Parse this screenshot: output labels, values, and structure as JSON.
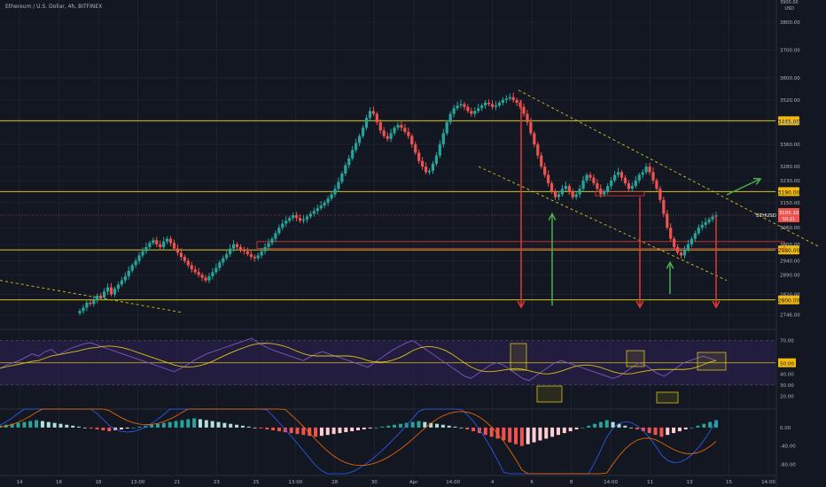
{
  "header": {
    "title": "Ethereum / U.S. Dollar, 4h, BITFINEX"
  },
  "chart_data": {
    "type": "candlestick",
    "symbol": "ETHUSD",
    "price_scale": {
      "unit_label": "USD",
      "ticks": [
        3800,
        3700,
        3600,
        3520,
        3440,
        3360,
        3280,
        3230,
        3150,
        3060,
        3000,
        2940,
        2890,
        2820,
        2746
      ],
      "top_label": "3900.00",
      "ylim": [
        2700,
        3880
      ]
    },
    "time_axis": {
      "labels": [
        "14",
        "16",
        "18",
        "13:00",
        "21",
        "23",
        "25",
        "13:00",
        "28",
        "30",
        "Apr",
        "14:00",
        "4",
        "6",
        "8",
        "14:00",
        "11",
        "13",
        "15",
        "14:00"
      ]
    },
    "horizontal_levels": [
      {
        "label": "3445.00",
        "value": 3445
      },
      {
        "label": "3190.00",
        "value": 3190
      },
      {
        "label": "2980.00",
        "value": 2980
      },
      {
        "label": "2800.00",
        "value": 2800
      }
    ],
    "current_price": {
      "symbol": "ETHUSD",
      "value": "3105.10",
      "countdown": "50:21",
      "price": 3105
    },
    "candles_close": [
      2760,
      2772,
      2790,
      2785,
      2800,
      2815,
      2808,
      2830,
      2845,
      2820,
      2840,
      2855,
      2870,
      2885,
      2905,
      2925,
      2940,
      2960,
      2975,
      2990,
      3005,
      3015,
      3000,
      2990,
      3010,
      3020,
      3005,
      2985,
      2970,
      2955,
      2940,
      2925,
      2910,
      2900,
      2890,
      2880,
      2870,
      2885,
      2900,
      2915,
      2935,
      2950,
      2965,
      2985,
      3000,
      2990,
      2980,
      2975,
      2965,
      2955,
      2950,
      2960,
      2975,
      2990,
      3005,
      3020,
      3040,
      3060,
      3075,
      3085,
      3095,
      3105,
      3095,
      3085,
      3090,
      3100,
      3110,
      3120,
      3130,
      3140,
      3150,
      3165,
      3180,
      3200,
      3225,
      3255,
      3285,
      3310,
      3340,
      3365,
      3390,
      3420,
      3455,
      3480,
      3470,
      3440,
      3410,
      3390,
      3380,
      3400,
      3420,
      3430,
      3420,
      3405,
      3390,
      3360,
      3330,
      3300,
      3280,
      3260,
      3265,
      3290,
      3320,
      3360,
      3400,
      3440,
      3470,
      3490,
      3500,
      3505,
      3495,
      3480,
      3470,
      3480,
      3490,
      3500,
      3510,
      3505,
      3495,
      3500,
      3510,
      3520,
      3525,
      3530,
      3520,
      3510,
      3495,
      3470,
      3440,
      3400,
      3360,
      3320,
      3280,
      3250,
      3220,
      3190,
      3170,
      3180,
      3200,
      3210,
      3190,
      3170,
      3180,
      3200,
      3230,
      3250,
      3240,
      3220,
      3200,
      3180,
      3190,
      3210,
      3230,
      3250,
      3260,
      3240,
      3220,
      3200,
      3210,
      3230,
      3250,
      3260,
      3280,
      3260,
      3230,
      3200,
      3160,
      3110,
      3060,
      3020,
      2990,
      2970,
      2960,
      2980,
      3000,
      3020,
      3040,
      3060,
      3070,
      3080,
      3090,
      3100,
      3105
    ],
    "rsi": {
      "levels": [
        70,
        50,
        30
      ],
      "ticks": [
        "70.00",
        "50.00",
        "40.00",
        "30.00",
        "20.00"
      ],
      "current_label": "50.00",
      "values": [
        45,
        48,
        50,
        52,
        55,
        58,
        56,
        60,
        62,
        57,
        60,
        63,
        65,
        67,
        68,
        66,
        64,
        62,
        60,
        58,
        56,
        54,
        52,
        50,
        48,
        46,
        44,
        42,
        45,
        48,
        52,
        55,
        58,
        60,
        62,
        64,
        66,
        68,
        70,
        72,
        68,
        65,
        62,
        60,
        58,
        56,
        54,
        52,
        55,
        58,
        60,
        58,
        56,
        54,
        52,
        50,
        48,
        46,
        50,
        54,
        58,
        62,
        65,
        68,
        70,
        66,
        62,
        58,
        54,
        50,
        46,
        42,
        38,
        36,
        40,
        44,
        48,
        50,
        48,
        44,
        40,
        36,
        34,
        38,
        42,
        46,
        50,
        52,
        50,
        48,
        46,
        44,
        42,
        40,
        38,
        36,
        38,
        42,
        46,
        50,
        48,
        44,
        40,
        38,
        42,
        46,
        50,
        52,
        54,
        56,
        54,
        52
      ]
    },
    "macd": {
      "ticks": [
        "0.00",
        "-40.00",
        "-80.00"
      ],
      "ylim": [
        -100,
        40
      ],
      "histogram": [
        4,
        6,
        8,
        10,
        12,
        14,
        16,
        14,
        12,
        10,
        8,
        6,
        4,
        2,
        0,
        -2,
        -4,
        -6,
        -8,
        -6,
        -4,
        -2,
        0,
        2,
        4,
        6,
        8,
        10,
        12,
        14,
        16,
        18,
        20,
        18,
        16,
        14,
        12,
        10,
        8,
        6,
        4,
        2,
        0,
        -2,
        -4,
        -6,
        -8,
        -10,
        -12,
        -14,
        -16,
        -18,
        -20,
        -18,
        -16,
        -14,
        -12,
        -10,
        -8,
        -6,
        -4,
        -2,
        0,
        2,
        4,
        6,
        8,
        10,
        12,
        14,
        12,
        10,
        8,
        6,
        4,
        2,
        0,
        -4,
        -8,
        -12,
        -16,
        -20,
        -24,
        -28,
        -32,
        -36,
        -40,
        -36,
        -32,
        -28,
        -24,
        -20,
        -16,
        -12,
        -8,
        -4,
        0,
        4,
        8,
        12,
        16,
        12,
        8,
        4,
        0,
        -4,
        -8,
        -12,
        -16,
        -20,
        -16,
        -12,
        -8,
        -4,
        0,
        4,
        8,
        12,
        16
      ]
    },
    "annotations": {
      "arrows_red_down": 4,
      "arrows_green_up": 3,
      "arrow_green_diagonal": 1,
      "trend_channel": "descending"
    }
  },
  "colors": {
    "background": "#131722",
    "up": "#26a69a",
    "down": "#ef5350",
    "level_line": "#d8c21a",
    "rsi_band": "#2a1f4a",
    "rsi_line": "#7e57c2",
    "rsi_ma": "#d8c21a",
    "red_arrow": "#e53935",
    "green_arrow": "#4caf50",
    "grid": "#1e2230",
    "axis_text": "#b2b5be",
    "price_label_bg": "#f0b90b"
  }
}
